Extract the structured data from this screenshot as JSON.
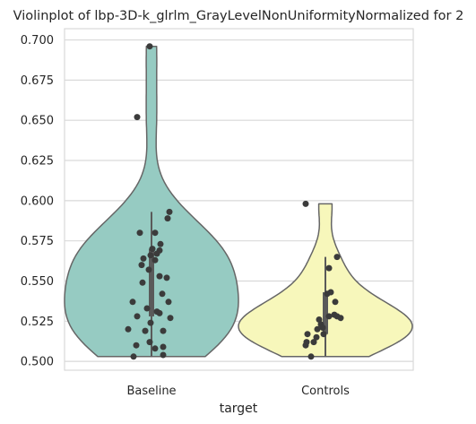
{
  "chart_data": {
    "type": "violin",
    "title": "Violinplot of lbp-3D-k_glrlm_GrayLevelNonUniformityNormalized for 2",
    "xlabel": "target",
    "ylabel": "",
    "categories": [
      "Baseline",
      "Controls"
    ],
    "ylim": [
      0.4945,
      0.707
    ],
    "yticks": [
      0.5,
      0.525,
      0.55,
      0.575,
      0.6,
      0.625,
      0.65,
      0.675,
      0.7
    ],
    "ytick_labels": [
      "0.500",
      "0.525",
      "0.550",
      "0.575",
      "0.600",
      "0.625",
      "0.650",
      "0.675",
      "0.700"
    ],
    "grid": "horizontal",
    "colors": {
      "Baseline": "#96cbc2",
      "Controls": "#f7f7bb",
      "outline": "#666666",
      "points": "#3b3b3b",
      "grid": "#d9d9d9"
    },
    "series": [
      {
        "name": "Baseline",
        "range": [
          0.503,
          0.696
        ],
        "iqr": [
          0.528,
          0.57
        ],
        "whisker": [
          0.503,
          0.593
        ],
        "points": [
          {
            "x": -0.02,
            "y": 0.696
          },
          {
            "x": -0.16,
            "y": 0.652
          },
          {
            "x": 0.2,
            "y": 0.593
          },
          {
            "x": 0.18,
            "y": 0.589
          },
          {
            "x": -0.13,
            "y": 0.58
          },
          {
            "x": 0.04,
            "y": 0.58
          },
          {
            "x": 0.1,
            "y": 0.573
          },
          {
            "x": 0.01,
            "y": 0.57
          },
          {
            "x": 0.09,
            "y": 0.569
          },
          {
            "x": 0.06,
            "y": 0.567
          },
          {
            "x": -0.01,
            "y": 0.566
          },
          {
            "x": -0.09,
            "y": 0.564
          },
          {
            "x": 0.04,
            "y": 0.563
          },
          {
            "x": -0.11,
            "y": 0.56
          },
          {
            "x": -0.03,
            "y": 0.557
          },
          {
            "x": 0.09,
            "y": 0.553
          },
          {
            "x": 0.17,
            "y": 0.552
          },
          {
            "x": -0.1,
            "y": 0.549
          },
          {
            "x": 0.12,
            "y": 0.542
          },
          {
            "x": -0.21,
            "y": 0.537
          },
          {
            "x": 0.19,
            "y": 0.537
          },
          {
            "x": -0.05,
            "y": 0.533
          },
          {
            "x": 0.06,
            "y": 0.531
          },
          {
            "x": 0.09,
            "y": 0.53
          },
          {
            "x": -0.16,
            "y": 0.528
          },
          {
            "x": 0.21,
            "y": 0.527
          },
          {
            "x": -0.01,
            "y": 0.524
          },
          {
            "x": -0.26,
            "y": 0.52
          },
          {
            "x": -0.07,
            "y": 0.519
          },
          {
            "x": 0.13,
            "y": 0.519
          },
          {
            "x": -0.02,
            "y": 0.512
          },
          {
            "x": -0.17,
            "y": 0.51
          },
          {
            "x": 0.13,
            "y": 0.509
          },
          {
            "x": 0.04,
            "y": 0.508
          },
          {
            "x": 0.13,
            "y": 0.504
          },
          {
            "x": -0.2,
            "y": 0.503
          }
        ]
      },
      {
        "name": "Controls",
        "range": [
          0.503,
          0.598
        ],
        "iqr": [
          0.517,
          0.543
        ],
        "whisker": [
          0.503,
          0.565
        ],
        "points": [
          {
            "x": -0.22,
            "y": 0.598
          },
          {
            "x": 0.13,
            "y": 0.565
          },
          {
            "x": 0.04,
            "y": 0.558
          },
          {
            "x": 0.06,
            "y": 0.543
          },
          {
            "x": 0.02,
            "y": 0.542
          },
          {
            "x": 0.11,
            "y": 0.537
          },
          {
            "x": 0.1,
            "y": 0.529
          },
          {
            "x": 0.13,
            "y": 0.528
          },
          {
            "x": 0.04,
            "y": 0.528
          },
          {
            "x": 0.17,
            "y": 0.527
          },
          {
            "x": -0.07,
            "y": 0.526
          },
          {
            "x": -0.05,
            "y": 0.523
          },
          {
            "x": -0.03,
            "y": 0.521
          },
          {
            "x": -0.09,
            "y": 0.52
          },
          {
            "x": -0.02,
            "y": 0.517
          },
          {
            "x": -0.2,
            "y": 0.517
          },
          {
            "x": -0.1,
            "y": 0.515
          },
          {
            "x": -0.21,
            "y": 0.512
          },
          {
            "x": -0.22,
            "y": 0.51
          },
          {
            "x": -0.13,
            "y": 0.512
          },
          {
            "x": -0.16,
            "y": 0.503
          }
        ]
      }
    ]
  }
}
